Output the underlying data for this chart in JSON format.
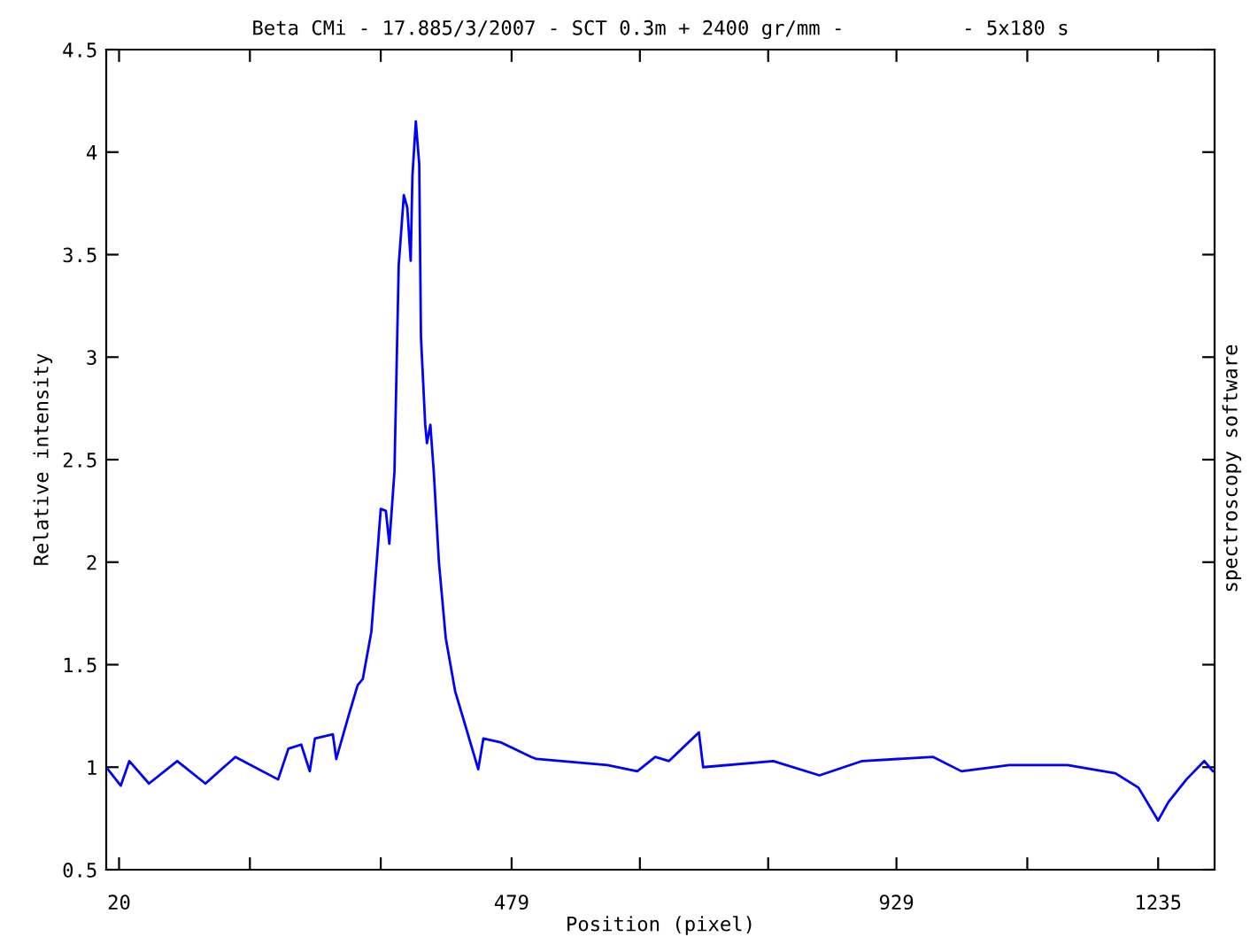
{
  "chart_data": {
    "type": "line",
    "title": "Beta CMi - 17.885/3/2007 - SCT 0.3m + 2400 gr/mm -          - 5x180 s",
    "xlabel": "Position (pixel)",
    "ylabel": "Relative intensity",
    "annotations": [
      "spectroscopy software"
    ],
    "x": [
      5,
      22,
      32,
      55,
      88,
      121,
      156,
      206,
      218,
      233,
      243,
      249,
      270,
      274,
      289,
      299,
      305,
      315,
      326,
      332,
      336,
      342,
      347,
      353,
      357,
      361,
      363,
      367,
      371,
      373,
      378,
      380,
      384,
      388,
      394,
      402,
      413,
      423,
      440,
      446,
      467,
      502,
      508,
      591,
      626,
      647,
      663,
      698,
      703,
      785,
      839,
      889,
      972,
      1005,
      1061,
      1129,
      1185,
      1212,
      1235,
      1247,
      1268,
      1289,
      1299
    ],
    "series": [
      {
        "color": "#0000ff",
        "values": [
          1.0,
          0.91,
          1.03,
          0.92,
          1.03,
          0.92,
          1.05,
          0.94,
          1.09,
          1.11,
          0.98,
          1.14,
          1.16,
          1.04,
          1.26,
          1.4,
          1.43,
          1.66,
          2.26,
          2.25,
          2.09,
          2.44,
          3.45,
          3.79,
          3.73,
          3.47,
          3.88,
          4.15,
          3.94,
          3.1,
          2.67,
          2.58,
          2.67,
          2.44,
          2.0,
          1.63,
          1.37,
          1.23,
          0.99,
          1.14,
          1.12,
          1.05,
          1.04,
          1.01,
          0.98,
          1.05,
          1.03,
          1.17,
          1.0,
          1.03,
          0.96,
          1.03,
          1.05,
          0.98,
          1.01,
          1.01,
          0.97,
          0.9,
          0.74,
          0.83,
          0.94,
          1.03,
          0.98
        ]
      }
    ],
    "xlim": [
      5,
      1301
    ],
    "ylim": [
      0.5,
      4.5
    ],
    "xticks": [
      20,
      {
        "value": 173,
        "label": null
      },
      {
        "value": 326,
        "label": null
      },
      479,
      {
        "value": 629,
        "label": null
      },
      {
        "value": 779,
        "label": null
      },
      929,
      {
        "value": 1082,
        "label": null
      },
      1235
    ],
    "yticks": [
      0.5,
      {
        "value": 1,
        "label": "1"
      },
      1.5,
      {
        "value": 2,
        "label": "2"
      },
      2.5,
      {
        "value": 3,
        "label": "3"
      },
      3.5,
      {
        "value": 4,
        "label": "4"
      },
      4.5
    ],
    "grid": false,
    "legend": false,
    "marker": "none",
    "line_style": "solid"
  }
}
